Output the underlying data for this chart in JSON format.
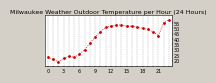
{
  "title": "Milwaukee Weather Outdoor Temperature per Hour (24 Hours)",
  "hours": [
    0,
    1,
    2,
    3,
    4,
    5,
    6,
    7,
    8,
    9,
    10,
    11,
    12,
    13,
    14,
    15,
    16,
    17,
    18,
    19,
    20,
    21,
    22,
    23
  ],
  "temps": [
    23,
    21,
    19,
    22,
    24,
    23,
    26,
    30,
    36,
    42,
    47,
    51,
    52,
    53,
    53,
    52,
    52,
    51,
    50,
    49,
    47,
    43,
    55,
    58
  ],
  "line_color": "#cc0000",
  "marker_color": "#cc0000",
  "bg_color": "#d4d0c8",
  "plot_bg_color": "#ffffff",
  "grid_color": "#888888",
  "title_color": "#000000",
  "title_fontsize": 4.5,
  "tick_fontsize": 3.5,
  "ylim": [
    15,
    62
  ],
  "yticks": [
    20,
    25,
    30,
    35,
    40,
    45,
    50,
    55
  ],
  "xlim": [
    -0.5,
    23.5
  ]
}
